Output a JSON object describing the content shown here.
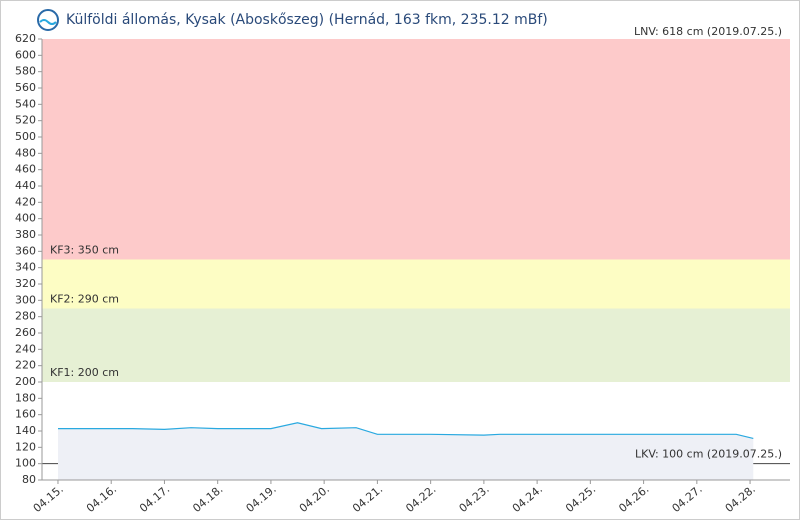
{
  "chart_data": {
    "type": "line",
    "title": "Külföldi állomás, Kysak (Aboskőszeg) (Hernád, 163 fkm, 235.12 mBf)",
    "x": [
      15,
      16,
      16.4,
      17,
      17.5,
      18,
      19,
      19.5,
      19.95,
      20.6,
      21.0,
      22,
      23,
      23.3,
      24,
      25,
      26,
      27,
      27.74,
      28.06
    ],
    "values": [
      143,
      143,
      143,
      142,
      144,
      143,
      143,
      150,
      143,
      144,
      136,
      136,
      135,
      136,
      136,
      136,
      136,
      136,
      136,
      131
    ],
    "color": "#29a9e0",
    "area_color": "#eef0f6",
    "xlim": [
      14.7,
      28.75
    ],
    "ylim": [
      80,
      620
    ],
    "xticks": [
      {
        "value": 15,
        "label": "04.15."
      },
      {
        "value": 16,
        "label": "04.16."
      },
      {
        "value": 17,
        "label": "04.17."
      },
      {
        "value": 18,
        "label": "04.18."
      },
      {
        "value": 19,
        "label": "04.19."
      },
      {
        "value": 20,
        "label": "04.20."
      },
      {
        "value": 21,
        "label": "04.21."
      },
      {
        "value": 22,
        "label": "04.22."
      },
      {
        "value": 23,
        "label": "04.23."
      },
      {
        "value": 24,
        "label": "04.24."
      },
      {
        "value": 25,
        "label": "04.25."
      },
      {
        "value": 26,
        "label": "04.26."
      },
      {
        "value": 27,
        "label": "04.27."
      },
      {
        "value": 28,
        "label": "04.28."
      }
    ],
    "yticks": [
      80,
      100,
      120,
      140,
      160,
      180,
      200,
      220,
      240,
      260,
      280,
      300,
      320,
      340,
      360,
      380,
      400,
      420,
      440,
      460,
      480,
      500,
      520,
      540,
      560,
      580,
      600,
      620
    ],
    "levels": [
      {
        "label": "KF1: 200 cm",
        "value": 200,
        "color": "#e6f0d4"
      },
      {
        "label": "KF2: 290 cm",
        "value": 290,
        "color": "#fdfdc4"
      },
      {
        "label": "KF3: 350 cm",
        "value": 350,
        "color": "#fdcaca"
      }
    ],
    "lnv_label": "LNV: 618 cm (2019.07.25.)",
    "lkv": {
      "label": "LKV: 100 cm (2019.07.25.)",
      "value": 100
    }
  }
}
